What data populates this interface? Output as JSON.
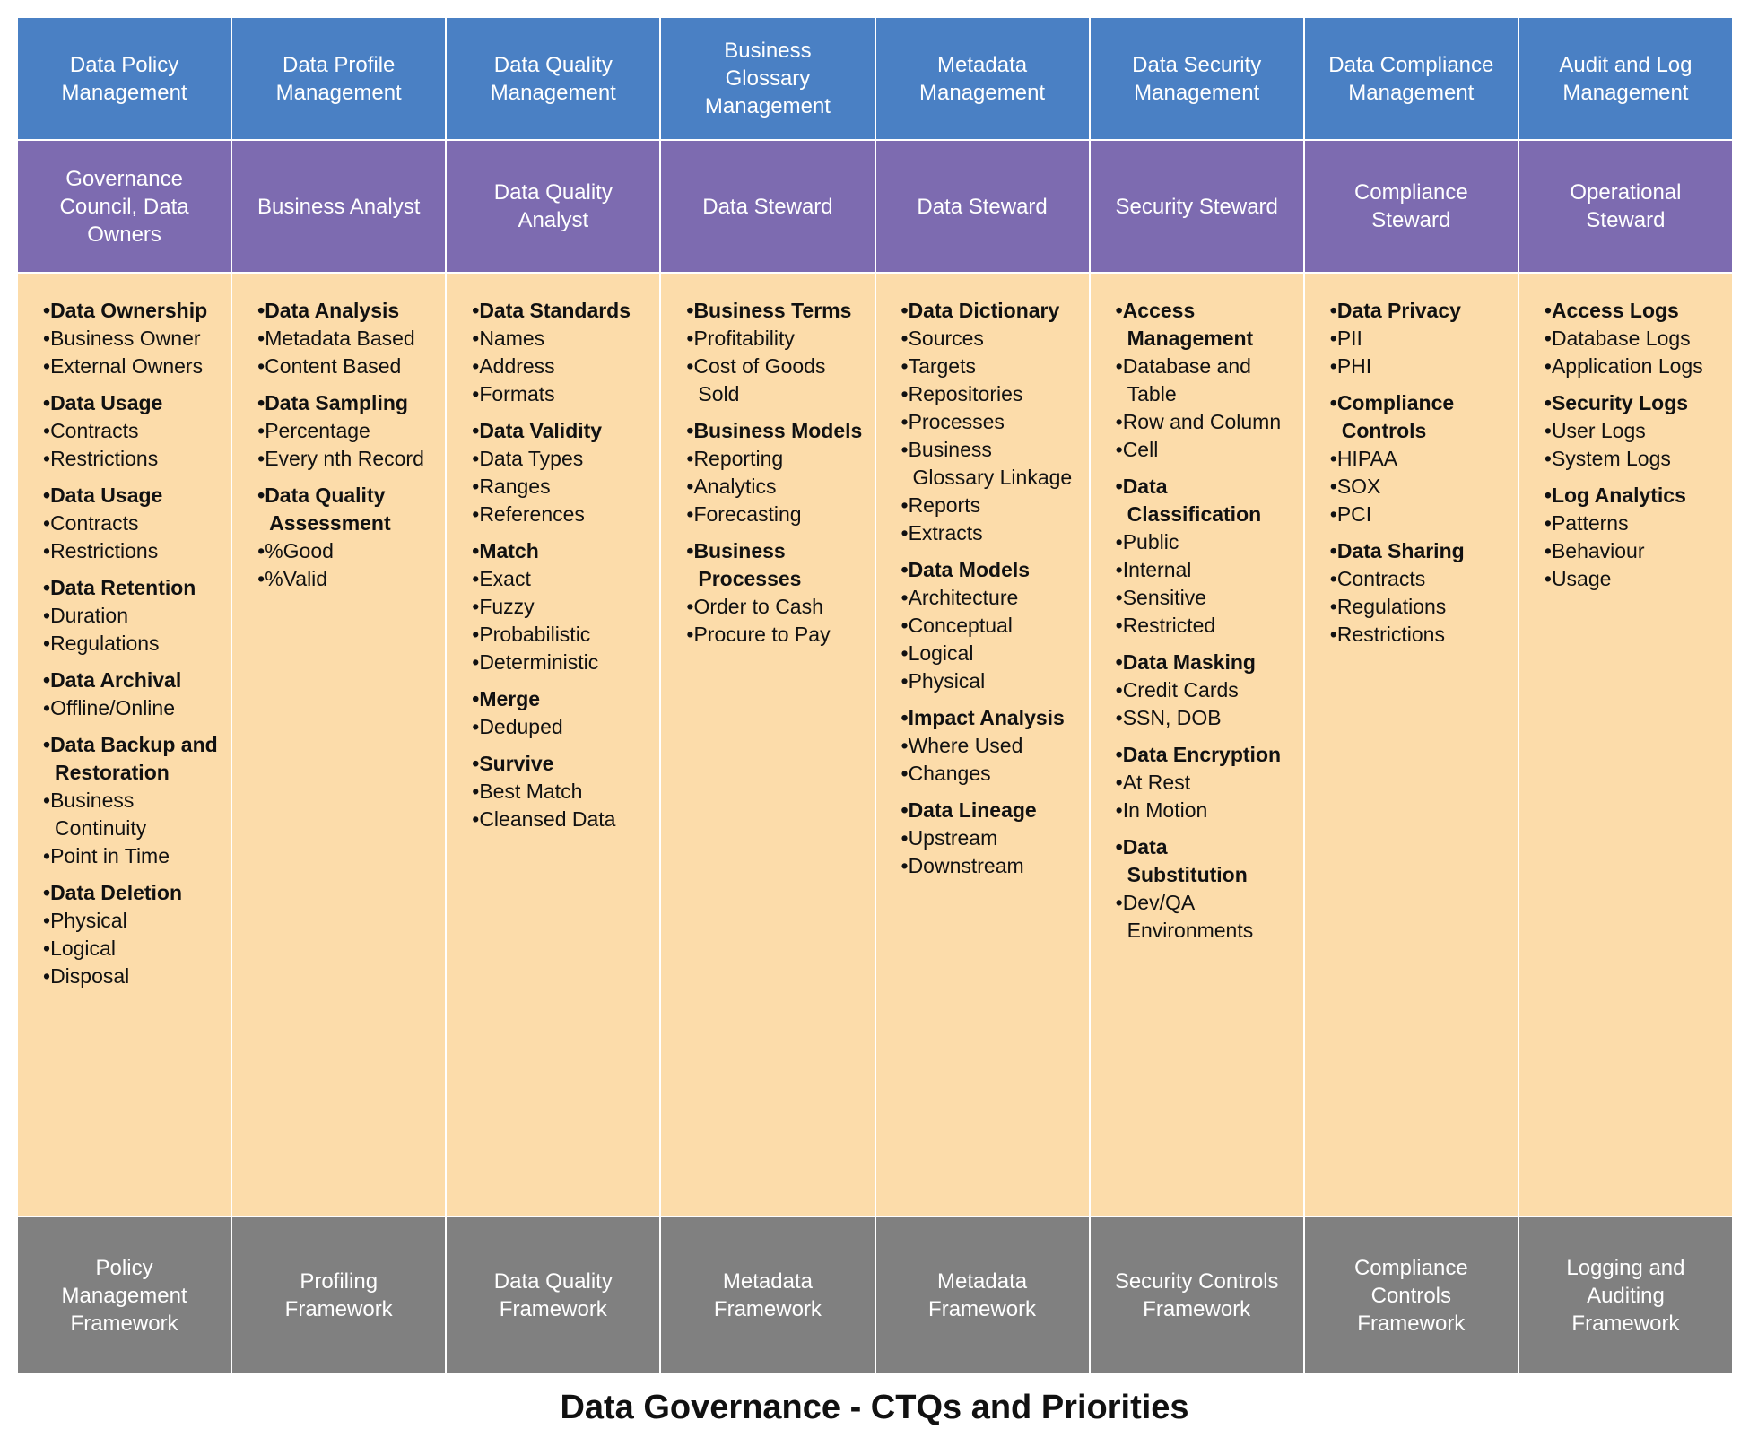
{
  "title": "Data Governance - CTQs and Priorities",
  "columns": [
    {
      "header": "Data Policy Management",
      "role": "Governance Council, Data Owners",
      "footer": "Policy Management Framework",
      "groups": [
        {
          "heading": "Data Ownership",
          "items": [
            "Business Owner",
            "External Owners"
          ]
        },
        {
          "heading": "Data Usage",
          "items": [
            "Contracts",
            "Restrictions"
          ]
        },
        {
          "heading": "Data Usage",
          "items": [
            "Contracts",
            "Restrictions"
          ]
        },
        {
          "heading": "Data Retention",
          "items": [
            "Duration",
            "Regulations"
          ]
        },
        {
          "heading": "Data Archival",
          "items": [
            "Offline/Online"
          ]
        },
        {
          "heading": "Data Backup and Restoration",
          "items": [
            "Business Continuity",
            "Point in Time"
          ]
        },
        {
          "heading": "Data Deletion",
          "items": [
            "Physical",
            "Logical",
            "Disposal"
          ]
        }
      ]
    },
    {
      "header": "Data Profile Management",
      "role": "Business Analyst",
      "footer": "Profiling Framework",
      "groups": [
        {
          "heading": "Data Analysis",
          "items": [
            "Metadata Based",
            "Content Based"
          ]
        },
        {
          "heading": "Data Sampling",
          "items": [
            "Percentage",
            "Every nth Record"
          ]
        },
        {
          "heading": "Data Quality Assessment",
          "items": [
            "%Good",
            "%Valid"
          ]
        }
      ]
    },
    {
      "header": "Data Quality Management",
      "role": "Data Quality Analyst",
      "footer": "Data Quality Framework",
      "groups": [
        {
          "heading": "Data Standards",
          "items": [
            "Names",
            "Address",
            "Formats"
          ]
        },
        {
          "heading": "Data Validity",
          "items": [
            "Data Types",
            "Ranges",
            "References"
          ]
        },
        {
          "heading": "Match",
          "items": [
            "Exact",
            "Fuzzy",
            "Probabilistic",
            "Deterministic"
          ]
        },
        {
          "heading": "Merge",
          "items": [
            "Deduped"
          ]
        },
        {
          "heading": "Survive",
          "items": [
            "Best Match",
            "Cleansed Data"
          ]
        }
      ]
    },
    {
      "header": "Business Glossary Management",
      "role": "Data Steward",
      "footer": "Metadata Framework",
      "groups": [
        {
          "heading": "Business Terms",
          "items": [
            "Profitability",
            "Cost of Goods Sold"
          ]
        },
        {
          "heading": "Business Models",
          "items": [
            "Reporting",
            "Analytics",
            "Forecasting"
          ]
        },
        {
          "heading": "Business Processes",
          "items": [
            "Order to Cash",
            "Procure to Pay"
          ]
        }
      ]
    },
    {
      "header": "Metadata Management",
      "role": "Data Steward",
      "footer": "Metadata Framework",
      "groups": [
        {
          "heading": "Data Dictionary",
          "items": [
            "Sources",
            "Targets",
            "Repositories",
            "Processes",
            "Business Glossary Linkage",
            "Reports",
            "Extracts"
          ]
        },
        {
          "heading": "Data Models",
          "items": [
            "Architecture",
            "Conceptual",
            "Logical",
            "Physical"
          ]
        },
        {
          "heading": "Impact Analysis",
          "items": [
            "Where Used",
            "Changes"
          ]
        },
        {
          "heading": "Data Lineage",
          "items": [
            "Upstream",
            "Downstream"
          ]
        }
      ]
    },
    {
      "header": "Data Security Management",
      "role": "Security Steward",
      "footer": "Security Controls Framework",
      "groups": [
        {
          "heading": "Access Management",
          "items": [
            "Database and Table",
            "Row and Column",
            "Cell"
          ]
        },
        {
          "heading": "Data Classification",
          "items": [
            "Public",
            "Internal",
            "Sensitive",
            "Restricted"
          ]
        },
        {
          "heading": "Data Masking",
          "items": [
            "Credit Cards",
            "SSN, DOB"
          ]
        },
        {
          "heading": "Data Encryption",
          "items": [
            "At Rest",
            "In Motion"
          ]
        },
        {
          "heading": "Data Substitution",
          "items": [
            "Dev/QA Environments"
          ]
        }
      ]
    },
    {
      "header": "Data Compliance Management",
      "role": "Compliance Steward",
      "footer": "Compliance Controls Framework",
      "groups": [
        {
          "heading": "Data Privacy",
          "items": [
            "PII",
            "PHI"
          ]
        },
        {
          "heading": "Compliance Controls",
          "items": [
            "HIPAA",
            "SOX",
            "PCI"
          ]
        },
        {
          "heading": "Data Sharing",
          "items": [
            "Contracts",
            "Regulations",
            "Restrictions"
          ]
        }
      ]
    },
    {
      "header": "Audit and Log Management",
      "role": "Operational Steward",
      "footer": "Logging and Auditing Framework",
      "groups": [
        {
          "heading": "Access Logs",
          "items": [
            "Database Logs",
            "Application Logs"
          ]
        },
        {
          "heading": "Security Logs",
          "items": [
            "User Logs",
            "System Logs"
          ]
        },
        {
          "heading": "Log Analytics",
          "items": [
            "Patterns",
            "Behaviour",
            "Usage"
          ]
        }
      ]
    }
  ]
}
